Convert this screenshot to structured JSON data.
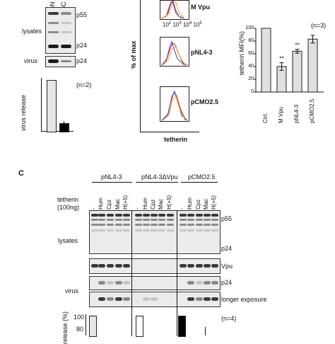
{
  "panelA": {
    "lanes": [
      "pN",
      "pC"
    ],
    "lysates": "lysates",
    "virus": "virus",
    "p55": "p55",
    "p24a": "p24",
    "p24b": "p24",
    "n": "(n=2)",
    "ylabel": "virus release"
  },
  "panelA_chart": {
    "type": "bar",
    "ylabel": "virus release",
    "values": [
      100,
      15
    ],
    "ylim": [
      0,
      100
    ],
    "colors": [
      "#e6e6e6",
      "#000000"
    ]
  },
  "panelB": {
    "ylabel": "% of max",
    "xlabel": "tetherin",
    "hist_labels": [
      "M Vpu",
      "pNL4-3",
      "pCMO2.5"
    ],
    "xticks": [
      "10",
      "2",
      "10",
      "3",
      "10",
      "4",
      "10",
      "5"
    ],
    "yticks": [
      "0",
      "20",
      "40",
      "60",
      "80",
      "100"
    ]
  },
  "panelB_chart": {
    "type": "bar",
    "n": "(n=3)",
    "ylabel": "tetherin MFI(%)",
    "yticks": [
      "0",
      "20",
      "40",
      "60",
      "80",
      "100"
    ],
    "categories": [
      "Ctrl.",
      "M Vpu",
      "pNL4-3",
      "pCMO2.5"
    ],
    "values": [
      100,
      40,
      64,
      83
    ],
    "errors": [
      0,
      6,
      3,
      6
    ],
    "sig": [
      "",
      "**",
      "**",
      ""
    ],
    "ylim": [
      0,
      100
    ]
  },
  "panelC": {
    "letter": "C",
    "groups": [
      "pNL4-3",
      "pNL4-3ΔVpu",
      "pCMO2.5"
    ],
    "tetherin_label": "tetherin",
    "dose": "(100ng)",
    "lanes": [
      "-",
      "Hum",
      "Cpz",
      "Mac",
      "H(+5)",
      "-",
      "Hum",
      "Cpz",
      "Mac",
      "H(+5)",
      "-",
      "Hum",
      "Cpz",
      "Mac",
      "H(+5)"
    ],
    "lysates": "lysates",
    "virus": "virus",
    "right_labels": [
      "p55",
      "p24",
      "Vpu",
      "p24",
      "longer exposure"
    ],
    "n": "(n=4)",
    "ylabel": "release (%)",
    "yticks": [
      "100",
      "80"
    ]
  }
}
